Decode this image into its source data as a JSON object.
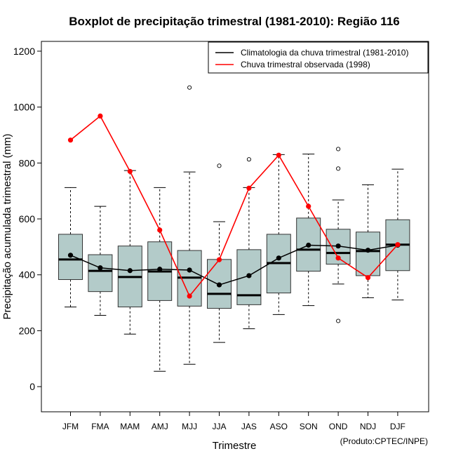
{
  "chart_data": {
    "type": "boxplot",
    "title": "Boxplot de precipitação trimestral (1981-2010): Região 116",
    "xlabel": "Trimestre",
    "ylabel": "Precipitação acumulada trimestral (mm)",
    "ylim": [
      -90,
      1235
    ],
    "yticks": [
      0,
      200,
      400,
      600,
      800,
      1000,
      1200
    ],
    "categories": [
      "JFM",
      "FMA",
      "MAM",
      "AMJ",
      "MJJ",
      "JJA",
      "JAS",
      "ASO",
      "SON",
      "OND",
      "NDJ",
      "DJF"
    ],
    "boxes": [
      {
        "low": 285,
        "q1": 383,
        "median": 455,
        "q3": 545,
        "high": 712,
        "outliers": []
      },
      {
        "low": 255,
        "q1": 340,
        "median": 414,
        "q3": 472,
        "high": 645,
        "outliers": []
      },
      {
        "low": 188,
        "q1": 285,
        "median": 392,
        "q3": 503,
        "high": 773,
        "outliers": []
      },
      {
        "low": 55,
        "q1": 308,
        "median": 412,
        "q3": 518,
        "high": 712,
        "outliers": []
      },
      {
        "low": 80,
        "q1": 288,
        "median": 390,
        "q3": 487,
        "high": 768,
        "outliers": [
          1070
        ]
      },
      {
        "low": 158,
        "q1": 280,
        "median": 332,
        "q3": 455,
        "high": 590,
        "outliers": [
          790
        ]
      },
      {
        "low": 207,
        "q1": 293,
        "median": 327,
        "q3": 490,
        "high": 712,
        "outliers": [
          813
        ]
      },
      {
        "low": 258,
        "q1": 335,
        "median": 442,
        "q3": 545,
        "high": 830,
        "outliers": []
      },
      {
        "low": 290,
        "q1": 413,
        "median": 490,
        "q3": 603,
        "high": 832,
        "outliers": []
      },
      {
        "low": 367,
        "q1": 438,
        "median": 478,
        "q3": 563,
        "high": 668,
        "outliers": [
          850,
          780,
          235
        ]
      },
      {
        "low": 318,
        "q1": 397,
        "median": 485,
        "q3": 553,
        "high": 722,
        "outliers": []
      },
      {
        "low": 310,
        "q1": 415,
        "median": 508,
        "q3": 597,
        "high": 778,
        "outliers": []
      }
    ],
    "series": [
      {
        "name": "Climatologia da chuva trimestral (1981-2010)",
        "color": "#000000",
        "values": [
          470,
          425,
          415,
          420,
          417,
          364,
          397,
          460,
          506,
          503,
          488,
          506
        ]
      },
      {
        "name": "Chuva trimestral observada (1998)",
        "color": "#ff0000",
        "values": [
          882,
          968,
          770,
          560,
          324,
          454,
          710,
          828,
          645,
          460,
          390,
          508
        ]
      }
    ],
    "legend_position": "top-right",
    "box_fill": "#b3cbc9"
  },
  "credit": "(Produto:CPTEC/INPE)"
}
